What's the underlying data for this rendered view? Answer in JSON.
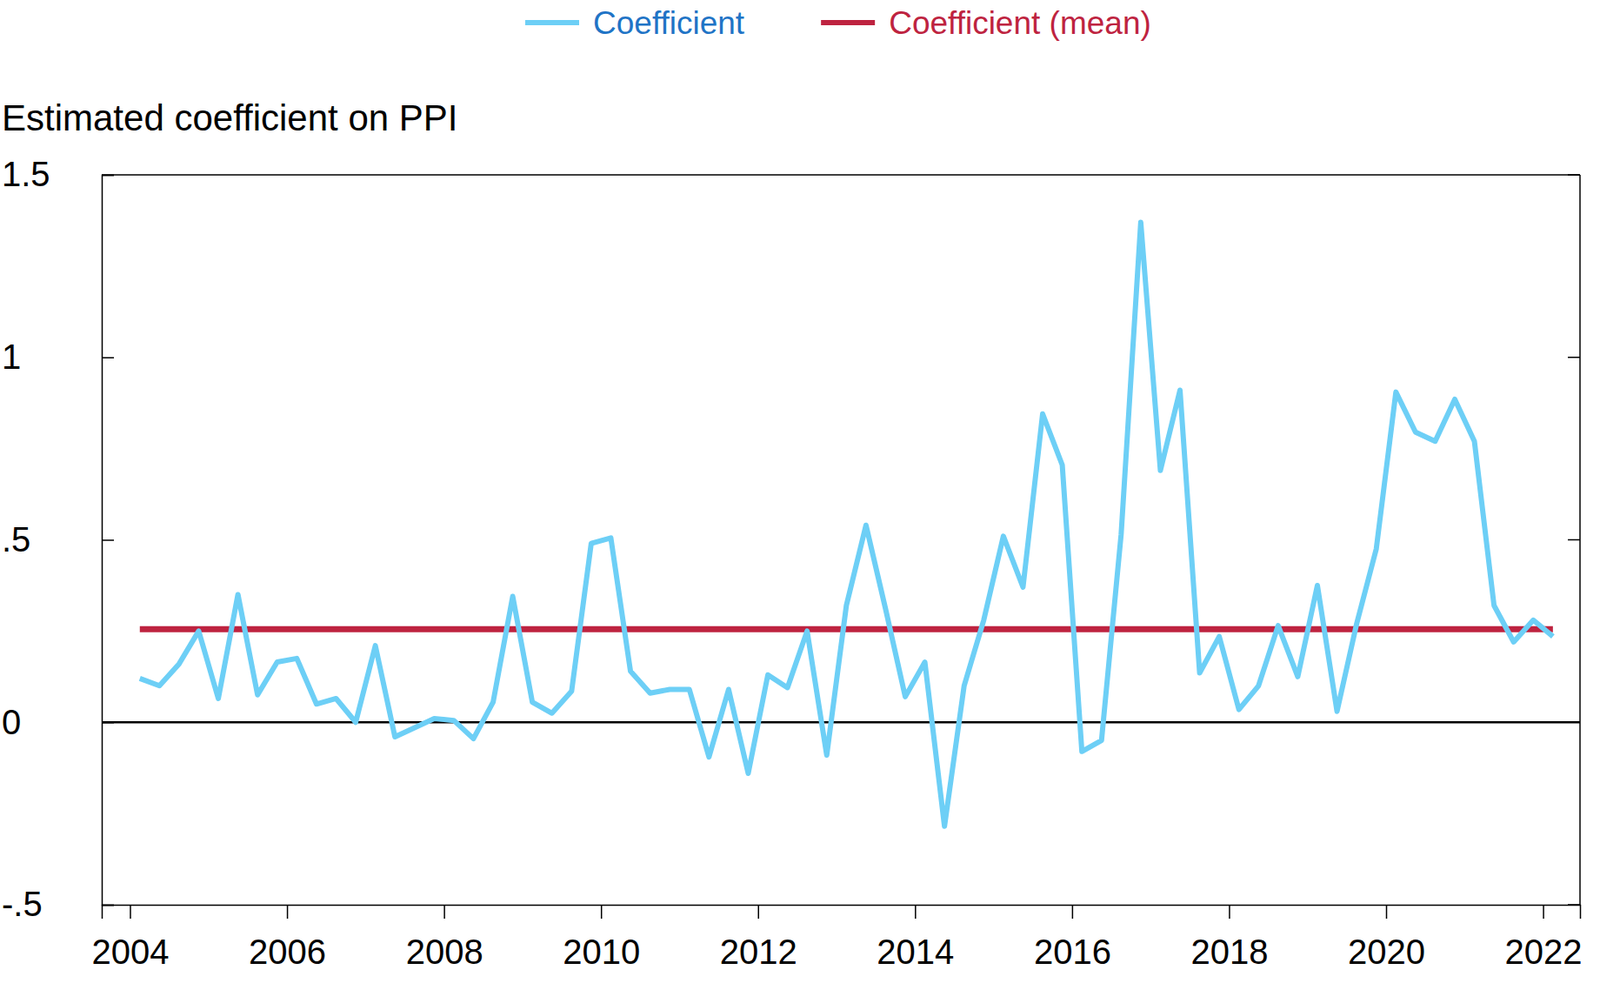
{
  "chart_data": {
    "type": "line",
    "y_label": "Estimated coefficient on PPI",
    "x": [
      2004.125,
      2004.375,
      2004.625,
      2004.875,
      2005.125,
      2005.375,
      2005.625,
      2005.875,
      2006.125,
      2006.375,
      2006.625,
      2006.875,
      2007.125,
      2007.375,
      2007.625,
      2007.875,
      2008.125,
      2008.375,
      2008.625,
      2008.875,
      2009.125,
      2009.375,
      2009.625,
      2009.875,
      2010.125,
      2010.375,
      2010.625,
      2010.875,
      2011.125,
      2011.375,
      2011.625,
      2011.875,
      2012.125,
      2012.375,
      2012.625,
      2012.875,
      2013.125,
      2013.375,
      2013.625,
      2013.875,
      2014.125,
      2014.375,
      2014.625,
      2014.875,
      2015.125,
      2015.375,
      2015.625,
      2015.875,
      2016.125,
      2016.375,
      2016.625,
      2016.875,
      2017.125,
      2017.375,
      2017.625,
      2017.875,
      2018.125,
      2018.375,
      2018.625,
      2018.875,
      2019.125,
      2019.375,
      2019.625,
      2019.875,
      2020.125,
      2020.375,
      2020.625,
      2020.875,
      2021.125,
      2021.375,
      2021.625,
      2021.875,
      2022.125
    ],
    "series": [
      {
        "name": "Coefficient",
        "color": "#6dcff6",
        "values": [
          0.12,
          0.1,
          0.16,
          0.25,
          0.065,
          0.35,
          0.075,
          0.165,
          0.175,
          0.05,
          0.065,
          0.0,
          0.21,
          -0.04,
          -0.015,
          0.01,
          0.005,
          -0.045,
          0.055,
          0.345,
          0.055,
          0.025,
          0.085,
          0.49,
          0.505,
          0.14,
          0.08,
          0.09,
          0.09,
          -0.095,
          0.09,
          -0.14,
          0.13,
          0.095,
          0.25,
          -0.09,
          0.32,
          0.54,
          0.31,
          0.07,
          0.165,
          -0.285,
          0.1,
          0.28,
          0.51,
          0.37,
          0.845,
          0.705,
          -0.08,
          -0.05,
          0.515,
          1.37,
          0.69,
          0.91,
          0.135,
          0.235,
          0.035,
          0.1,
          0.265,
          0.125,
          0.375,
          0.03,
          0.27,
          0.475,
          0.905,
          0.795,
          0.77,
          0.885,
          0.77,
          0.32,
          0.22,
          0.28,
          0.235
        ]
      },
      {
        "name": "Coefficient (mean)",
        "color": "#be2340",
        "values": [
          0.255,
          0.255,
          0.255,
          0.255,
          0.255,
          0.255,
          0.255,
          0.255,
          0.255,
          0.255,
          0.255,
          0.255,
          0.255,
          0.255,
          0.255,
          0.255,
          0.255,
          0.255,
          0.255,
          0.255,
          0.255,
          0.255,
          0.255,
          0.255,
          0.255,
          0.255,
          0.255,
          0.255,
          0.255,
          0.255,
          0.255,
          0.255,
          0.255,
          0.255,
          0.255,
          0.255,
          0.255,
          0.255,
          0.255,
          0.255,
          0.255,
          0.255,
          0.255,
          0.255,
          0.255,
          0.255,
          0.255,
          0.255,
          0.255,
          0.255,
          0.255,
          0.255,
          0.255,
          0.255,
          0.255,
          0.255,
          0.255,
          0.255,
          0.255,
          0.255,
          0.255,
          0.255,
          0.255,
          0.255,
          0.255,
          0.255,
          0.255,
          0.255,
          0.255,
          0.255,
          0.255,
          0.255,
          0.255
        ]
      }
    ],
    "xlim": [
      2003.64,
      2022.47
    ],
    "xticks": [
      2004,
      2006,
      2008,
      2010,
      2012,
      2014,
      2016,
      2018,
      2020,
      2022
    ],
    "ylim": [
      -0.5,
      1.5
    ],
    "yticks": [
      {
        "value": -0.5,
        "label": "-.5"
      },
      0,
      {
        "value": 0.5,
        "label": ".5"
      },
      1,
      {
        "value": 1.5,
        "label": "1.5"
      }
    ],
    "legend": "top",
    "grid": false
  }
}
